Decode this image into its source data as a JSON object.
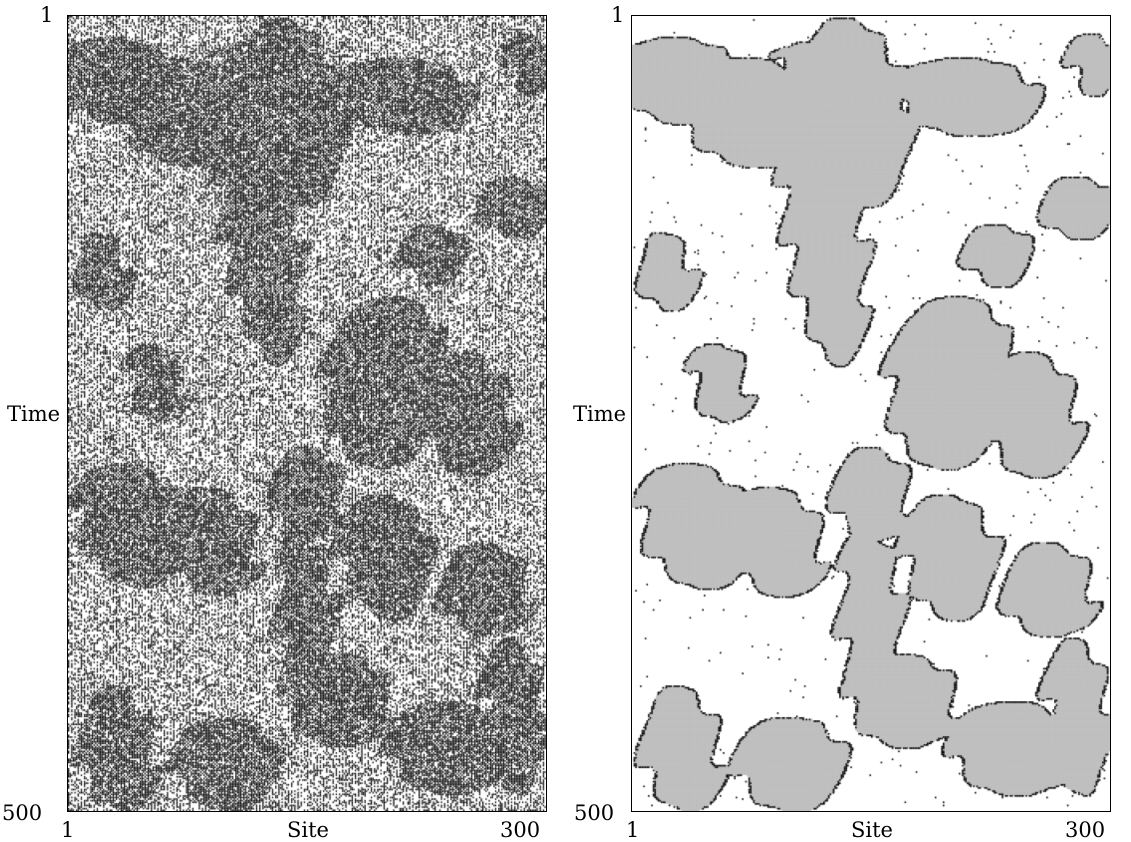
{
  "panels": [
    {
      "y_axis": {
        "label": "Time",
        "tick_min": "1",
        "tick_max": "500"
      },
      "x_axis": {
        "label": "Site",
        "tick_min": "1",
        "tick_max": "300"
      },
      "style": "binary-cells",
      "colors": {
        "cell_on": "#000000",
        "background": "#ffffff"
      }
    },
    {
      "y_axis": {
        "label": "Time",
        "tick_min": "1",
        "tick_max": "500"
      },
      "x_axis": {
        "label": "Site",
        "tick_min": "1",
        "tick_max": "300"
      },
      "style": "domain-filtered",
      "colors": {
        "domain": "#bfbfbf",
        "defect": "#000000",
        "background": "#ffffff"
      }
    }
  ]
}
